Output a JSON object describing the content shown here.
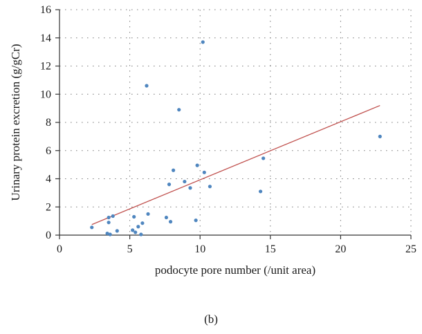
{
  "caption": "(b)",
  "colors": {
    "point": "#4f86bf",
    "trend": "#c0504d",
    "axis": "#333333",
    "grid": "#777777"
  },
  "chart_data": {
    "type": "scatter",
    "xlabel": "podocyte pore number (/unit area)",
    "ylabel": "Urinary protein excretion (g/gCr)",
    "xlim": [
      0,
      25
    ],
    "ylim": [
      0,
      16
    ],
    "xticks": [
      0,
      5,
      10,
      15,
      20,
      25
    ],
    "yticks": [
      0,
      2,
      4,
      6,
      8,
      10,
      12,
      14,
      16
    ],
    "grid": {
      "x": "dotted",
      "y": "dotted"
    },
    "points": [
      {
        "x": 2.3,
        "y": 0.55
      },
      {
        "x": 3.4,
        "y": 0.12
      },
      {
        "x": 3.5,
        "y": 0.9
      },
      {
        "x": 3.5,
        "y": 1.25
      },
      {
        "x": 3.6,
        "y": 0.05
      },
      {
        "x": 3.8,
        "y": 1.35
      },
      {
        "x": 4.1,
        "y": 0.3
      },
      {
        "x": 5.2,
        "y": 0.35
      },
      {
        "x": 5.3,
        "y": 1.3
      },
      {
        "x": 5.4,
        "y": 0.2
      },
      {
        "x": 5.6,
        "y": 0.6
      },
      {
        "x": 5.8,
        "y": 0.05
      },
      {
        "x": 5.9,
        "y": 0.85
      },
      {
        "x": 6.2,
        "y": 10.6
      },
      {
        "x": 6.3,
        "y": 1.5
      },
      {
        "x": 7.6,
        "y": 1.25
      },
      {
        "x": 7.8,
        "y": 3.6
      },
      {
        "x": 7.9,
        "y": 0.95
      },
      {
        "x": 8.1,
        "y": 4.6
      },
      {
        "x": 8.5,
        "y": 8.9
      },
      {
        "x": 8.9,
        "y": 3.8
      },
      {
        "x": 9.3,
        "y": 3.35
      },
      {
        "x": 9.7,
        "y": 1.05
      },
      {
        "x": 9.8,
        "y": 4.95
      },
      {
        "x": 10.2,
        "y": 13.7
      },
      {
        "x": 10.3,
        "y": 4.45
      },
      {
        "x": 10.7,
        "y": 3.45
      },
      {
        "x": 14.3,
        "y": 3.1
      },
      {
        "x": 14.5,
        "y": 5.45
      },
      {
        "x": 22.8,
        "y": 7.0
      }
    ],
    "trendline": {
      "x": [
        2.3,
        22.8
      ],
      "y": [
        0.75,
        9.2
      ]
    }
  }
}
